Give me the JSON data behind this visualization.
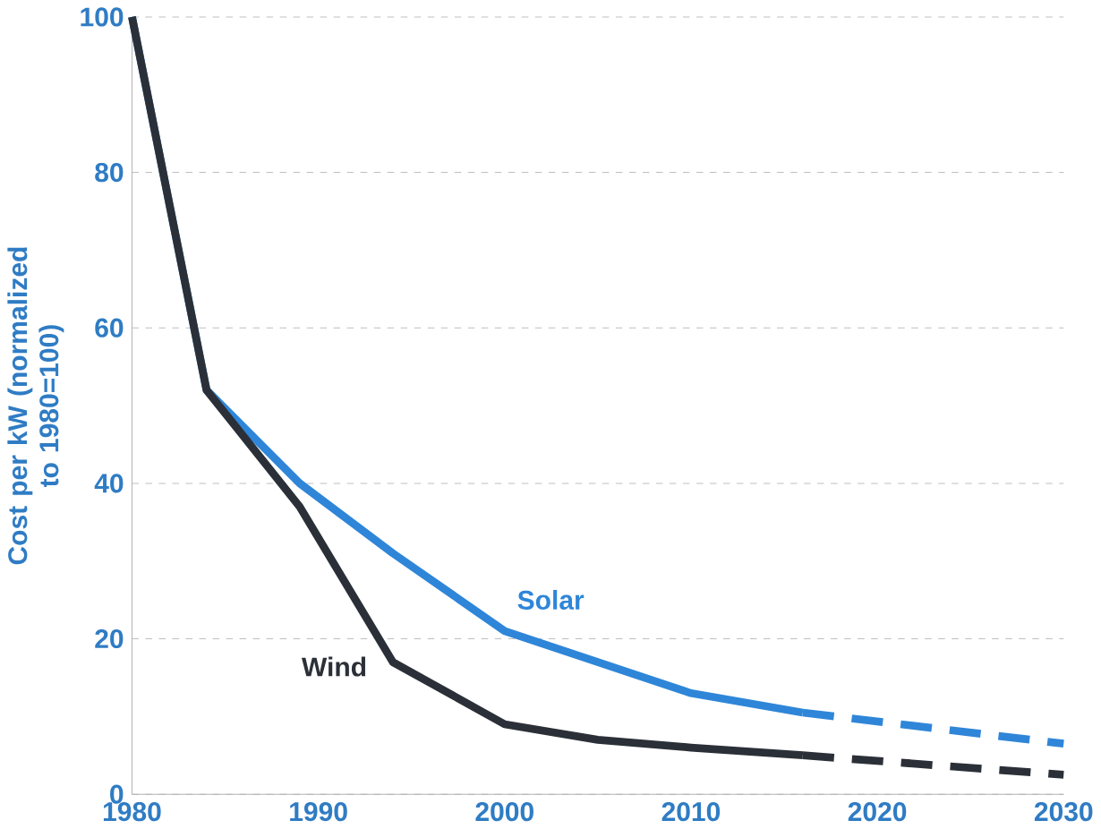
{
  "chart_data": {
    "type": "line",
    "ylabel": "Cost per kW (normalized to 1980=100)",
    "xlim": [
      1980,
      2030
    ],
    "ylim": [
      0,
      100
    ],
    "xticks": [
      1980,
      1990,
      2000,
      2010,
      2020,
      2030
    ],
    "yticks": [
      0,
      20,
      40,
      60,
      80,
      100
    ],
    "grid": "y",
    "marker": "none",
    "series": [
      {
        "name": "Solar",
        "color": "#2f86d8",
        "line_style": "solid",
        "x": [
          1980,
          1984,
          1989,
          1994,
          2000,
          2005,
          2010,
          2016
        ],
        "values": [
          100,
          52,
          40,
          31,
          21,
          17,
          13,
          10.5
        ]
      },
      {
        "name": "Wind",
        "color": "#2b3038",
        "line_style": "solid",
        "x": [
          1980,
          1984,
          1989,
          1994,
          2000,
          2005,
          2010,
          2016
        ],
        "values": [
          100,
          52,
          37,
          17,
          9,
          7,
          6,
          5
        ]
      },
      {
        "color": "#2f86d8",
        "line_style": "dashed",
        "x": [
          2016,
          2030
        ],
        "values": [
          10.5,
          6.5
        ]
      },
      {
        "color": "#2b3038",
        "line_style": "dashed",
        "x": [
          2016,
          2030
        ],
        "values": [
          5,
          2.5
        ]
      }
    ]
  }
}
